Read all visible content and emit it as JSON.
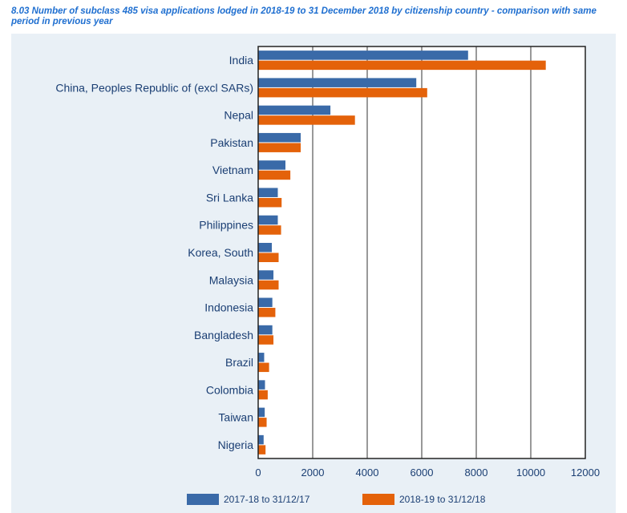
{
  "chart_data": {
    "type": "bar",
    "orientation": "horizontal",
    "title": "8.03 Number of subclass 485 visa applications lodged in 2018-19 to 31 December 2018 by citizenship country - comparison with same period in previous year",
    "categories": [
      "India",
      "China, Peoples Republic of (excl SARs)",
      "Nepal",
      "Pakistan",
      "Vietnam",
      "Sri Lanka",
      "Philippines",
      "Korea, South",
      "Malaysia",
      "Indonesia",
      "Bangladesh",
      "Brazil",
      "Colombia",
      "Taiwan",
      "Nigeria"
    ],
    "series": [
      {
        "name": "2017-18 to 31/12/17",
        "color": "#3a6aa8",
        "values": [
          7700,
          5800,
          2650,
          1560,
          1000,
          720,
          720,
          500,
          560,
          520,
          520,
          220,
          250,
          240,
          200
        ]
      },
      {
        "name": "2018-19 to 31/12/18",
        "color": "#e4620a",
        "values": [
          10550,
          6200,
          3550,
          1560,
          1180,
          860,
          840,
          750,
          750,
          630,
          560,
          400,
          350,
          310,
          270
        ]
      }
    ],
    "xlim": [
      0,
      12000
    ],
    "xticks": [
      0,
      2000,
      4000,
      6000,
      8000,
      10000,
      12000
    ],
    "xtick_labels": [
      "0",
      "2000",
      "4000",
      "6000",
      "8000",
      "10000",
      "12000"
    ],
    "grid": true,
    "legend_position": "bottom"
  }
}
